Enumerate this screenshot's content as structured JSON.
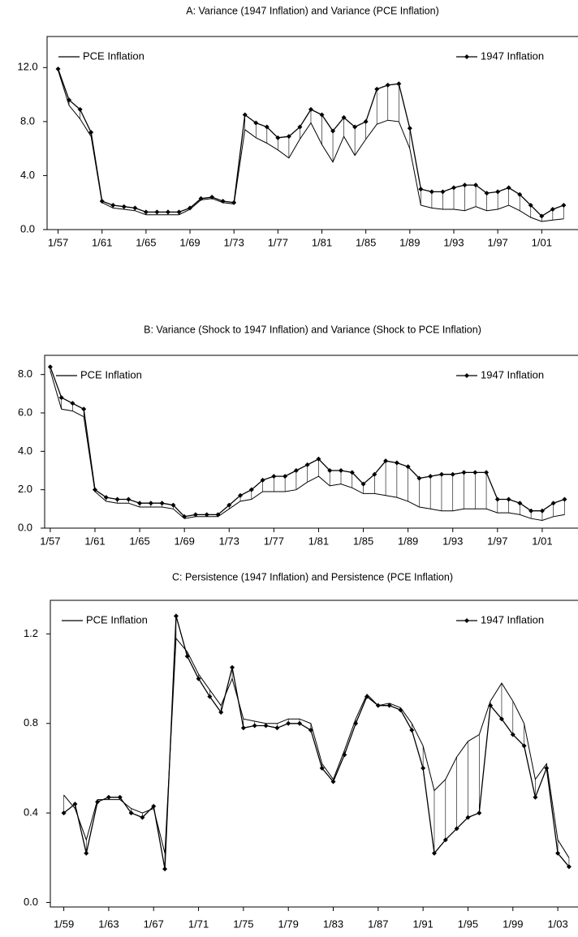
{
  "chart_data": [
    {
      "type": "line",
      "title": "A: Variance (1947 Inflation) and Variance (PCE Inflation)",
      "x": [
        1957,
        1958,
        1959,
        1960,
        1961,
        1962,
        1963,
        1964,
        1965,
        1966,
        1967,
        1968,
        1969,
        1970,
        1971,
        1972,
        1973,
        1974,
        1975,
        1976,
        1977,
        1978,
        1979,
        1980,
        1981,
        1982,
        1983,
        1984,
        1985,
        1986,
        1987,
        1988,
        1989,
        1990,
        1991,
        1992,
        1993,
        1994,
        1995,
        1996,
        1997,
        1998,
        1999,
        2000,
        2001,
        2002,
        2003
      ],
      "series": [
        {
          "name": "PCE Inflation",
          "color": "#000000",
          "marker": false,
          "legend": "upper left",
          "values": [
            11.8,
            9.2,
            8.2,
            6.9,
            2.0,
            1.6,
            1.5,
            1.4,
            1.1,
            1.1,
            1.1,
            1.1,
            1.5,
            2.2,
            2.3,
            2.0,
            1.9,
            7.4,
            6.8,
            6.4,
            5.9,
            5.3,
            6.7,
            7.9,
            6.3,
            5.0,
            6.9,
            5.5,
            6.7,
            7.8,
            8.1,
            8.0,
            6.0,
            1.8,
            1.6,
            1.5,
            1.5,
            1.4,
            1.7,
            1.4,
            1.5,
            1.8,
            1.4,
            0.9,
            0.6,
            0.7,
            0.8
          ]
        },
        {
          "name": "1947 Inflation",
          "color": "#000000",
          "marker": true,
          "legend": "upper right",
          "values": [
            11.9,
            9.6,
            8.9,
            7.2,
            2.1,
            1.8,
            1.7,
            1.6,
            1.3,
            1.3,
            1.3,
            1.3,
            1.6,
            2.3,
            2.4,
            2.1,
            2.0,
            8.5,
            7.9,
            7.6,
            6.8,
            6.9,
            7.6,
            8.9,
            8.5,
            7.3,
            8.3,
            7.6,
            8.0,
            10.4,
            10.7,
            10.8,
            7.5,
            3.0,
            2.8,
            2.8,
            3.1,
            3.3,
            3.3,
            2.7,
            2.8,
            3.1,
            2.6,
            1.8,
            1.0,
            1.5,
            1.8
          ]
        }
      ],
      "xlim": [
        1956,
        2004.3
      ],
      "xticks": [
        {
          "value": 1957,
          "label": "1/57"
        },
        {
          "value": 1961,
          "label": "1/61"
        },
        {
          "value": 1965,
          "label": "1/65"
        },
        {
          "value": 1969,
          "label": "1/69"
        },
        {
          "value": 1973,
          "label": "1/73"
        },
        {
          "value": 1977,
          "label": "1/77"
        },
        {
          "value": 1981,
          "label": "1/81"
        },
        {
          "value": 1985,
          "label": "1/85"
        },
        {
          "value": 1989,
          "label": "1/89"
        },
        {
          "value": 1993,
          "label": "1/93"
        },
        {
          "value": 1997,
          "label": "1/97"
        },
        {
          "value": 2001,
          "label": "1/01"
        }
      ],
      "ylim": [
        0,
        14.3
      ],
      "yticks": [
        {
          "value": 0,
          "label": "0.0"
        },
        {
          "value": 4,
          "label": "4.0"
        },
        {
          "value": 8,
          "label": "8.0"
        },
        {
          "value": 12,
          "label": "12.0"
        }
      ],
      "hatch": true
    },
    {
      "type": "line",
      "title": "B: Variance (Shock to 1947 Inflation) and Variance (Shock to PCE Inflation)",
      "x": [
        1957,
        1958,
        1959,
        1960,
        1961,
        1962,
        1963,
        1964,
        1965,
        1966,
        1967,
        1968,
        1969,
        1970,
        1971,
        1972,
        1973,
        1974,
        1975,
        1976,
        1977,
        1978,
        1979,
        1980,
        1981,
        1982,
        1983,
        1984,
        1985,
        1986,
        1987,
        1988,
        1989,
        1990,
        1991,
        1992,
        1993,
        1994,
        1995,
        1996,
        1997,
        1998,
        1999,
        2000,
        2001,
        2002,
        2003
      ],
      "series": [
        {
          "name": "PCE Inflation",
          "color": "#000000",
          "marker": false,
          "legend": "upper left",
          "values": [
            8.2,
            6.2,
            6.1,
            5.8,
            1.9,
            1.4,
            1.3,
            1.3,
            1.1,
            1.1,
            1.1,
            1.0,
            0.5,
            0.6,
            0.6,
            0.6,
            1.0,
            1.4,
            1.5,
            1.9,
            1.9,
            1.9,
            2.0,
            2.4,
            2.7,
            2.2,
            2.3,
            2.1,
            1.8,
            1.8,
            1.7,
            1.6,
            1.4,
            1.1,
            1.0,
            0.9,
            0.9,
            1.0,
            1.0,
            1.0,
            0.8,
            0.8,
            0.7,
            0.5,
            0.4,
            0.6,
            0.7
          ]
        },
        {
          "name": "1947 Inflation",
          "color": "#000000",
          "marker": true,
          "legend": "upper right",
          "values": [
            8.4,
            6.8,
            6.5,
            6.2,
            2.0,
            1.6,
            1.5,
            1.5,
            1.3,
            1.3,
            1.3,
            1.2,
            0.6,
            0.7,
            0.7,
            0.7,
            1.2,
            1.7,
            2.0,
            2.5,
            2.7,
            2.7,
            3.0,
            3.3,
            3.6,
            3.0,
            3.0,
            2.9,
            2.3,
            2.8,
            3.5,
            3.4,
            3.2,
            2.6,
            2.7,
            2.8,
            2.8,
            2.9,
            2.9,
            2.9,
            1.5,
            1.5,
            1.3,
            0.9,
            0.9,
            1.3,
            1.5
          ]
        }
      ],
      "xlim": [
        1956.5,
        2004.2
      ],
      "xticks": [
        {
          "value": 1957,
          "label": "1/57"
        },
        {
          "value": 1961,
          "label": "1/61"
        },
        {
          "value": 1965,
          "label": "1/65"
        },
        {
          "value": 1969,
          "label": "1/69"
        },
        {
          "value": 1973,
          "label": "1/73"
        },
        {
          "value": 1977,
          "label": "1/77"
        },
        {
          "value": 1981,
          "label": "1/81"
        },
        {
          "value": 1985,
          "label": "1/85"
        },
        {
          "value": 1989,
          "label": "1/89"
        },
        {
          "value": 1993,
          "label": "1/93"
        },
        {
          "value": 1997,
          "label": "1/97"
        },
        {
          "value": 2001,
          "label": "1/01"
        }
      ],
      "ylim": [
        0,
        9
      ],
      "yticks": [
        {
          "value": 0,
          "label": "0.0"
        },
        {
          "value": 2,
          "label": "2.0"
        },
        {
          "value": 4,
          "label": "4.0"
        },
        {
          "value": 6,
          "label": "6.0"
        },
        {
          "value": 8,
          "label": "8.0"
        }
      ],
      "hatch": true
    },
    {
      "type": "line",
      "title": "C: Persistence (1947 Inflation) and Persistence (PCE Inflation)",
      "x": [
        1959,
        1960,
        1961,
        1962,
        1963,
        1964,
        1965,
        1966,
        1967,
        1968,
        1969,
        1970,
        1971,
        1972,
        1973,
        1974,
        1975,
        1976,
        1977,
        1978,
        1979,
        1980,
        1981,
        1982,
        1983,
        1984,
        1985,
        1986,
        1987,
        1988,
        1989,
        1990,
        1991,
        1992,
        1993,
        1994,
        1995,
        1996,
        1997,
        1998,
        1999,
        2000,
        2001,
        2002,
        2003,
        2004
      ],
      "series": [
        {
          "name": "PCE Inflation",
          "color": "#000000",
          "marker": false,
          "legend": "upper left",
          "values": [
            0.48,
            0.42,
            0.28,
            0.46,
            0.46,
            0.46,
            0.42,
            0.4,
            0.42,
            0.22,
            1.18,
            1.12,
            1.02,
            0.95,
            0.88,
            1.0,
            0.82,
            0.81,
            0.8,
            0.8,
            0.82,
            0.82,
            0.8,
            0.62,
            0.55,
            0.68,
            0.82,
            0.93,
            0.88,
            0.89,
            0.87,
            0.8,
            0.7,
            0.5,
            0.55,
            0.65,
            0.72,
            0.75,
            0.9,
            0.98,
            0.9,
            0.8,
            0.55,
            0.62,
            0.28,
            0.2
          ]
        },
        {
          "name": "1947 Inflation",
          "color": "#000000",
          "marker": true,
          "legend": "upper right",
          "values": [
            0.4,
            0.44,
            0.22,
            0.45,
            0.47,
            0.47,
            0.4,
            0.38,
            0.43,
            0.15,
            1.28,
            1.1,
            1.0,
            0.92,
            0.85,
            1.05,
            0.78,
            0.79,
            0.79,
            0.78,
            0.8,
            0.8,
            0.77,
            0.6,
            0.54,
            0.66,
            0.8,
            0.92,
            0.88,
            0.88,
            0.86,
            0.77,
            0.6,
            0.22,
            0.28,
            0.33,
            0.38,
            0.4,
            0.88,
            0.82,
            0.75,
            0.7,
            0.47,
            0.6,
            0.22,
            0.16
          ]
        }
      ],
      "xlim": [
        1957.8,
        2004.8
      ],
      "xticks": [
        {
          "value": 1959,
          "label": "1/59"
        },
        {
          "value": 1963,
          "label": "1/63"
        },
        {
          "value": 1967,
          "label": "1/67"
        },
        {
          "value": 1971,
          "label": "1/71"
        },
        {
          "value": 1975,
          "label": "1/75"
        },
        {
          "value": 1979,
          "label": "1/79"
        },
        {
          "value": 1983,
          "label": "1/83"
        },
        {
          "value": 1987,
          "label": "1/87"
        },
        {
          "value": 1991,
          "label": "1/91"
        },
        {
          "value": 1995,
          "label": "1/95"
        },
        {
          "value": 1999,
          "label": "1/99"
        },
        {
          "value": 2003,
          "label": "1/03"
        }
      ],
      "ylim": [
        -0.02,
        1.35
      ],
      "yticks": [
        {
          "value": 0,
          "label": "0.0"
        },
        {
          "value": 0.4,
          "label": "0.4"
        },
        {
          "value": 0.8,
          "label": "0.8"
        },
        {
          "value": 1.2,
          "label": "1.2"
        }
      ],
      "hatch": true
    }
  ]
}
